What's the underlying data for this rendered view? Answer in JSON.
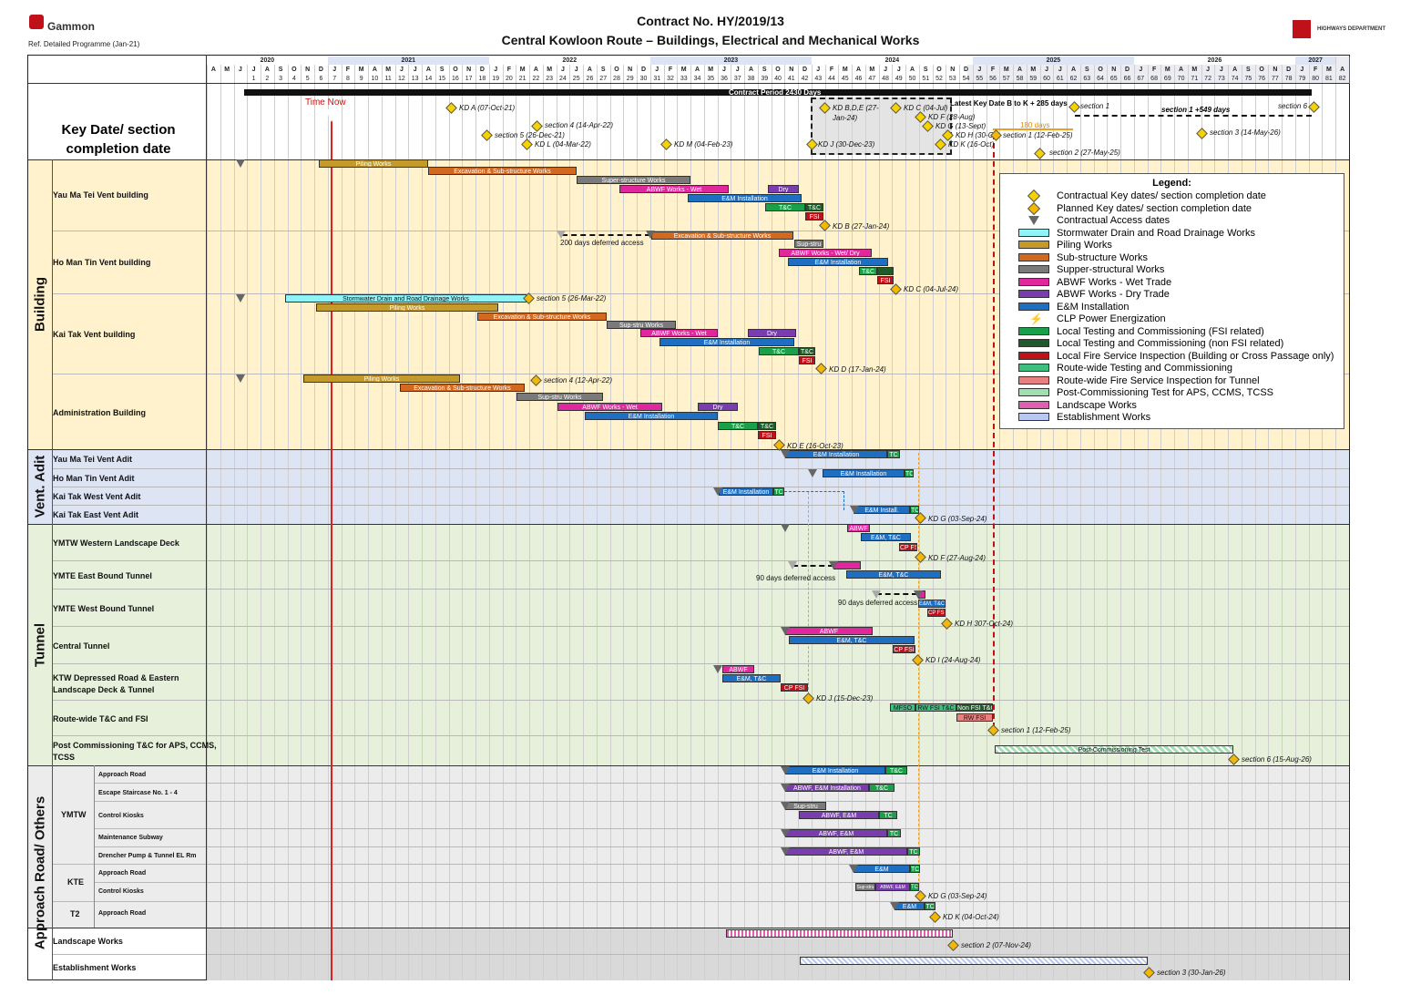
{
  "header": {
    "logo_text": "Gammon",
    "ref": "Ref. Detailed Programme (Jan-21)",
    "title1": "Contract No. HY/2019/13",
    "title2": "Central Kowloon Route – Buildings, Electrical and Mechanical Works",
    "dept": "HIGHWAYS DEPARTMENT"
  },
  "timeline": {
    "years": [
      "2020",
      "2021",
      "2022",
      "2023",
      "2024",
      "2025",
      "2026",
      "2027"
    ],
    "months": [
      "A",
      "M",
      "J",
      "J",
      "A",
      "S",
      "O",
      "N",
      "D",
      "J",
      "F",
      "M",
      "A",
      "M",
      "J",
      "J",
      "A",
      "S",
      "O",
      "N",
      "D",
      "J",
      "F",
      "M",
      "A",
      "M",
      "J",
      "J",
      "A",
      "S",
      "O",
      "N",
      "D",
      "J",
      "F",
      "M",
      "A",
      "M",
      "J",
      "J",
      "A",
      "S",
      "O",
      "N",
      "D",
      "J",
      "F",
      "M",
      "A",
      "M",
      "J",
      "J",
      "A",
      "S",
      "O",
      "N",
      "D",
      "J",
      "F",
      "M",
      "A",
      "M",
      "J",
      "J",
      "A",
      "S",
      "O",
      "N",
      "D",
      "J",
      "F",
      "M",
      "A",
      "M",
      "J",
      "J",
      "A",
      "S",
      "O",
      "N",
      "D",
      "J",
      "F",
      "M",
      "A"
    ],
    "contract_period": "Contract Period 2430 Days",
    "time_now": "Time Now",
    "latest": "Latest Key Date B to K + 285 days",
    "section1_plus": "section 1 +549 days",
    "days180": "180 days"
  },
  "keydate_title": "Key Date/ section completion date",
  "groups": {
    "building": "Building",
    "vent": "Vent. Adit",
    "tunnel": "Tunnel",
    "approach": "Approach Road/ Others"
  },
  "rows": {
    "ymt": "Yau Ma Tei Vent building",
    "hmt": "Ho Man Tin Vent building",
    "ktv": "Kai Tak Vent building",
    "admin": "Administration Building",
    "ymta": "Yau Ma Tei Vent Adit",
    "hmta": "Ho Man Tin Vent Adit",
    "ktwa": "Kai Tak West Vent Adit",
    "ktea": "Kai Tak East Vent Adit",
    "ymtw": "YMTW Western Landscape Deck",
    "ymteb": "YMTE East Bound Tunnel",
    "ymtwb": "YMTE West Bound Tunnel",
    "central": "Central Tunnel",
    "ktw1": "KTW Depressed Road & Eastern",
    "ktw2": "Landscape Deck & Tunnel",
    "route": "Route-wide T&C and FSI",
    "post1": "Post Commissioning T&C for APS, CCMS,",
    "post2": "TCSS",
    "ar_ymtw": "YMTW",
    "ar_kte": "KTE",
    "ar_t2": "T2",
    "sub1": "Approach Road",
    "sub2": "Escape Staircase No. 1 - 4",
    "sub3": "Control Kiosks",
    "sub4": "Maintenance Subway",
    "sub5": "Drencher Pump & Tunnel EL Rm",
    "sub6": "Approach Road",
    "sub7": "Control Kiosks",
    "sub8": "Approach Road",
    "landscape": "Landscape Works",
    "establish": "Establishment Works"
  },
  "bars": {
    "piling": "Piling Works",
    "exc": "Excavation & Sub-structure Works",
    "super": "Super-structure Works",
    "supstru": "Sup-stru Works",
    "supstru2": "Sup-stru",
    "abwf_wet": "ABWF Works - Wet",
    "dry": "Dry",
    "em": "E&M Installation",
    "tc": "T&C",
    "tc2": "TC",
    "fsi": "FSI",
    "abwf_wetdry": "ABWF Works - Wet/ Dry",
    "storm": "Stormwater Drain and Road Drainage Works",
    "abwf": "ABWF",
    "emtc": "E&M, T&C",
    "cpfsi": "CP FSI",
    "em_install": "E&M Install.",
    "mfso": "MFSO",
    "rwfsi": "RW FSI T&C",
    "nonfsi": "Non FSI T&C",
    "rwfsi2": "RW FSI",
    "post": "Post-Commissioning Test",
    "abwfem": "ABWF, E&M",
    "abwfemi": "ABWF, E&M Installation",
    "em2": "E&M",
    "deferred200": "200 days deferred access",
    "deferred90a": "90 days deferred access",
    "deferred90b": "90 days deferred access"
  },
  "kd": {
    "kda": "KD A (07-Oct-21)",
    "s4a": "section 4 (14-Apr-22)",
    "s5a": "section 5 (26-Dec-21)",
    "kdl": "KD L (04-Mar-22)",
    "kdm": "KD M (04-Feb-23)",
    "kdbde": "KD B,D,E (27-",
    "kdbde2": "Jan-24)",
    "kdc": "KD C (04-Jul)",
    "kdf": "KD F (28-Aug)",
    "kdg": "KD G (13-Sept)",
    "kdh": "KD H (30-O",
    "kdk": "KD K (16-Oct)",
    "kdj": "KD J (30-Dec-23)",
    "s1": "section 1",
    "s6": "section 6",
    "s1b": "section 1 (12-Feb-25)",
    "s2": "section 2 (27-May-25)",
    "s3": "section 3 (14-May-26)",
    "kdb": "KD B (27-Jan-24)",
    "kdc2": "KD C (04-Jul-24)",
    "s5b": "section 5 (26-Mar-22)",
    "kdd": "KD D (17-Jan-24)",
    "s4b": "section 4 (12-Apr-22)",
    "kde": "KD E (16-Oct-23)",
    "kdg2": "KD G (03-Sep-24)",
    "kdf2": "KD F (27-Aug-24)",
    "kdh2": "KD H 307-Oct-24)",
    "kdi": "KD I (24-Aug-24)",
    "kdj2": "KD J (15-Dec-23)",
    "s1c": "section 1 (12-Feb-25)",
    "s6b": "section 6 (15-Aug-26)",
    "kdg3": "KD G (03-Sep-24)",
    "kdk2": "KD K (04-Oct-24)",
    "s2b": "section 2 (07-Nov-24)",
    "s3b": "section 3 (30-Jan-26)"
  },
  "legend": {
    "title": "Legend:",
    "items": [
      {
        "label": "Contractual Key dates/ section completion date",
        "color": "#f5d200",
        "kind": "diamond"
      },
      {
        "label": "Planned Key dates/ section completion date",
        "color": "#f5b800",
        "kind": "diamond"
      },
      {
        "label": "Contractual Access dates",
        "color": "#666666",
        "kind": "triangle"
      },
      {
        "label": "Stormwater Drain and Road Drainage Works",
        "color": "#8ff3f8",
        "kind": "bar"
      },
      {
        "label": "Piling Works",
        "color": "#c49a2a",
        "kind": "bar"
      },
      {
        "label": "Sub-structure Works",
        "color": "#d2691e",
        "kind": "bar"
      },
      {
        "label": "Supper-structural Works",
        "color": "#7a7a7a",
        "kind": "bar"
      },
      {
        "label": "ABWF Works - Wet Trade",
        "color": "#e0279e",
        "kind": "bar"
      },
      {
        "label": "ABWF Works - Dry Trade",
        "color": "#7a3db0",
        "kind": "bar"
      },
      {
        "label": "E&M Installation",
        "color": "#1e6fc2",
        "kind": "bar"
      },
      {
        "label": "CLP Power Energization",
        "color": "#f5d200",
        "kind": "bolt"
      },
      {
        "label": "Local Testing and Commissioning (FSI related)",
        "color": "#1aa04a",
        "kind": "bar"
      },
      {
        "label": "Local Testing and Commissioning (non FSI related)",
        "color": "#1f5a2a",
        "kind": "bar"
      },
      {
        "label": "Local Fire Service Inspection (Building or Cross Passage only)",
        "color": "#c0101a",
        "kind": "bar"
      },
      {
        "label": "Route-wide Testing and Commissioning",
        "color": "#3fbf7f",
        "kind": "bar"
      },
      {
        "label": "Route-wide Fire Service Inspection for Tunnel",
        "color": "#e88080",
        "kind": "bar"
      },
      {
        "label": "Post-Commissioning Test for APS, CCMS, TCSS",
        "color": "#9fe0b0",
        "kind": "bar"
      },
      {
        "label": "Landscape Works",
        "color": "#e060b0",
        "kind": "bar"
      },
      {
        "label": "Establishment Works",
        "color": "#b8c8f0",
        "kind": "bar"
      }
    ]
  }
}
